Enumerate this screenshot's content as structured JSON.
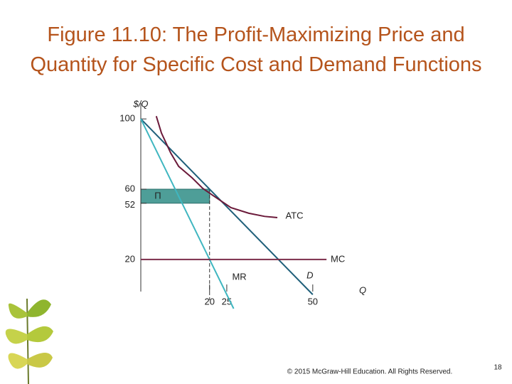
{
  "chart_data": {
    "type": "line",
    "title": "Figure 11.10: The Profit-Maximizing Price and Quantity for Specific Cost and Demand Functions",
    "xlabel": "Q",
    "ylabel": "$/Q",
    "xlim": [
      0,
      55
    ],
    "ylim": [
      -8,
      109
    ],
    "xticks": [
      20,
      25,
      50
    ],
    "yticks": [
      20,
      52,
      60,
      100
    ],
    "series": [
      {
        "name": "D",
        "color": "#1f5f7a",
        "x": [
          0,
          50
        ],
        "values": [
          100,
          0
        ]
      },
      {
        "name": "MR",
        "color": "#3fb6c0",
        "x": [
          0,
          27
        ],
        "values": [
          100,
          -8
        ]
      },
      {
        "name": "MC",
        "color": "#7b2d4a",
        "x": [
          0,
          54
        ],
        "values": [
          20,
          20
        ]
      },
      {
        "name": "ATC",
        "color": "#6b1a3a",
        "x": [
          4.5,
          6,
          8.7,
          11,
          14.9,
          18,
          21,
          26.2,
          31.4,
          36,
          39.7
        ],
        "values": [
          101.6,
          92,
          80.6,
          73,
          66.5,
          60.5,
          56.4,
          49.5,
          46.3,
          44.5,
          43.8
        ]
      }
    ],
    "profit_area": {
      "label": "Π",
      "x": [
        0,
        20
      ],
      "values": [
        52,
        60
      ],
      "color": "#4e9e98"
    }
  },
  "footer": {
    "copyright": "© 2015 McGraw-Hill Education. All Rights Reserved.",
    "page": 18
  }
}
